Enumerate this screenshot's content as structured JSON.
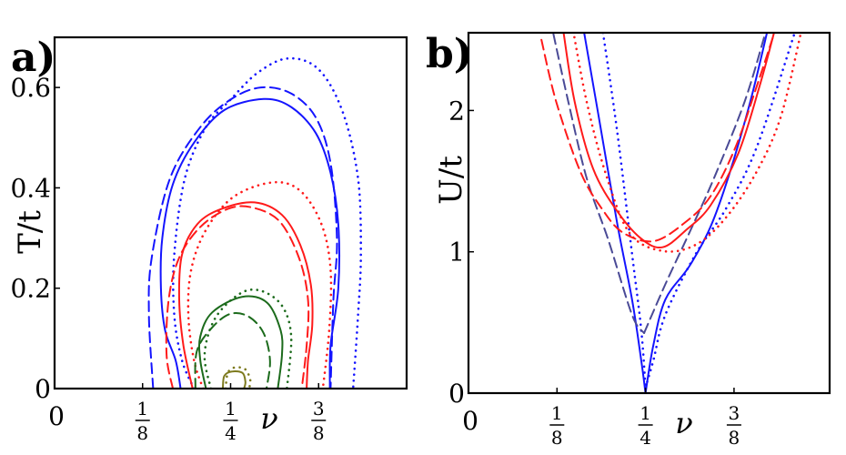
{
  "colors": {
    "blue": "#1414ff",
    "red": "#ff1a1a",
    "green": "#1c6b1c",
    "olive": "#7d7a1e",
    "slate": "#4a4a96"
  },
  "chart_data": [
    {
      "panel_label": "a)",
      "type": "line",
      "xlabel": "ν",
      "ylabel": "T/t",
      "xlim": [
        0,
        0.5
      ],
      "ylim": [
        0,
        0.7
      ],
      "xticks": [
        {
          "value": 0,
          "label": "0"
        },
        {
          "value": 0.125,
          "num": "1",
          "den": "8"
        },
        {
          "value": 0.25,
          "num": "1",
          "den": "4"
        },
        {
          "value": 0.375,
          "num": "3",
          "den": "8"
        }
      ],
      "yticks": [
        {
          "value": 0,
          "label": "0"
        },
        {
          "value": 0.2,
          "label": "0.2"
        },
        {
          "value": 0.4,
          "label": "0.4"
        },
        {
          "value": 0.6,
          "label": "0.6"
        }
      ],
      "grid": false,
      "series": [
        {
          "color": "blue",
          "style": "solid",
          "points": [
            [
              0.179,
              0
            ],
            [
              0.172,
              0.056
            ],
            [
              0.157,
              0.116
            ],
            [
              0.151,
              0.2
            ],
            [
              0.153,
              0.3
            ],
            [
              0.168,
              0.407
            ],
            [
              0.198,
              0.49
            ],
            [
              0.241,
              0.555
            ],
            [
              0.297,
              0.577
            ],
            [
              0.336,
              0.561
            ],
            [
              0.371,
              0.509
            ],
            [
              0.392,
              0.43
            ],
            [
              0.403,
              0.327
            ],
            [
              0.403,
              0.2
            ],
            [
              0.392,
              0.086
            ],
            [
              0.391,
              0
            ]
          ]
        },
        {
          "color": "blue",
          "style": "dashed",
          "points": [
            [
              0.14,
              0
            ],
            [
              0.134,
              0.146
            ],
            [
              0.138,
              0.261
            ],
            [
              0.164,
              0.419
            ],
            [
              0.207,
              0.521
            ],
            [
              0.25,
              0.576
            ],
            [
              0.293,
              0.6
            ],
            [
              0.336,
              0.588
            ],
            [
              0.371,
              0.54
            ],
            [
              0.392,
              0.449
            ],
            [
              0.401,
              0.298
            ],
            [
              0.396,
              0.177
            ],
            [
              0.392,
              0
            ]
          ]
        },
        {
          "color": "blue",
          "style": "dotted",
          "points": [
            [
              0.198,
              0
            ],
            [
              0.181,
              0.056
            ],
            [
              0.17,
              0.146
            ],
            [
              0.17,
              0.267
            ],
            [
              0.185,
              0.419
            ],
            [
              0.215,
              0.521
            ],
            [
              0.25,
              0.576
            ],
            [
              0.289,
              0.63
            ],
            [
              0.332,
              0.658
            ],
            [
              0.375,
              0.636
            ],
            [
              0.409,
              0.552
            ],
            [
              0.431,
              0.419
            ],
            [
              0.435,
              0.267
            ],
            [
              0.431,
              0.146
            ],
            [
              0.424,
              0
            ]
          ]
        },
        {
          "color": "red",
          "style": "solid",
          "points": [
            [
              0.196,
              0
            ],
            [
              0.183,
              0.086
            ],
            [
              0.177,
              0.177
            ],
            [
              0.181,
              0.267
            ],
            [
              0.203,
              0.328
            ],
            [
              0.237,
              0.358
            ],
            [
              0.284,
              0.371
            ],
            [
              0.323,
              0.346
            ],
            [
              0.349,
              0.286
            ],
            [
              0.364,
              0.207
            ],
            [
              0.366,
              0.128
            ],
            [
              0.36,
              0.056
            ],
            [
              0.358,
              0
            ]
          ]
        },
        {
          "color": "red",
          "style": "dashed",
          "points": [
            [
              0.168,
              0
            ],
            [
              0.159,
              0.068
            ],
            [
              0.162,
              0.177
            ],
            [
              0.177,
              0.261
            ],
            [
              0.207,
              0.322
            ],
            [
              0.246,
              0.358
            ],
            [
              0.28,
              0.361
            ],
            [
              0.319,
              0.334
            ],
            [
              0.347,
              0.261
            ],
            [
              0.36,
              0.177
            ],
            [
              0.358,
              0.086
            ],
            [
              0.351,
              0
            ]
          ]
        },
        {
          "color": "red",
          "style": "dotted",
          "points": [
            [
              0.211,
              0
            ],
            [
              0.198,
              0.056
            ],
            [
              0.19,
              0.146
            ],
            [
              0.194,
              0.237
            ],
            [
              0.215,
              0.316
            ],
            [
              0.254,
              0.382
            ],
            [
              0.31,
              0.411
            ],
            [
              0.349,
              0.394
            ],
            [
              0.379,
              0.328
            ],
            [
              0.392,
              0.237
            ],
            [
              0.39,
              0.116
            ],
            [
              0.381,
              0
            ]
          ]
        },
        {
          "color": "green",
          "style": "solid",
          "points": [
            [
              0.215,
              0
            ],
            [
              0.207,
              0.056
            ],
            [
              0.207,
              0.104
            ],
            [
              0.224,
              0.152
            ],
            [
              0.267,
              0.183
            ],
            [
              0.302,
              0.171
            ],
            [
              0.321,
              0.116
            ],
            [
              0.323,
              0.068
            ],
            [
              0.317,
              0
            ]
          ]
        },
        {
          "color": "green",
          "style": "dashed",
          "points": [
            [
              0.2,
              0
            ],
            [
              0.202,
              0.074
            ],
            [
              0.224,
              0.122
            ],
            [
              0.25,
              0.149
            ],
            [
              0.276,
              0.143
            ],
            [
              0.297,
              0.11
            ],
            [
              0.306,
              0.056
            ],
            [
              0.301,
              0
            ]
          ]
        },
        {
          "color": "green",
          "style": "dotted",
          "points": [
            [
              0.222,
              0
            ],
            [
              0.213,
              0.068
            ],
            [
              0.228,
              0.14
            ],
            [
              0.263,
              0.189
            ],
            [
              0.293,
              0.195
            ],
            [
              0.323,
              0.165
            ],
            [
              0.336,
              0.104
            ],
            [
              0.33,
              0
            ]
          ]
        },
        {
          "color": "olive",
          "style": "solid",
          "points": [
            [
              0.239,
              0
            ],
            [
              0.241,
              0.025
            ],
            [
              0.252,
              0.034
            ],
            [
              0.267,
              0.031
            ],
            [
              0.271,
              0.013
            ],
            [
              0.269,
              0
            ]
          ]
        },
        {
          "color": "olive",
          "style": "dotted",
          "points": [
            [
              0.243,
              0
            ],
            [
              0.246,
              0.031
            ],
            [
              0.256,
              0.042
            ],
            [
              0.271,
              0.038
            ],
            [
              0.278,
              0.016
            ],
            [
              0.276,
              0
            ]
          ]
        }
      ]
    },
    {
      "panel_label": "b)",
      "type": "line",
      "xlabel": "ν",
      "ylabel": "U/t",
      "xlim": [
        0,
        0.51
      ],
      "ylim": [
        0,
        2.55
      ],
      "xticks": [
        {
          "value": 0,
          "label": "0"
        },
        {
          "value": 0.125,
          "num": "1",
          "den": "8"
        },
        {
          "value": 0.25,
          "num": "1",
          "den": "4"
        },
        {
          "value": 0.375,
          "num": "3",
          "den": "8"
        }
      ],
      "yticks": [
        {
          "value": 0,
          "label": "0"
        },
        {
          "value": 1,
          "label": "1"
        },
        {
          "value": 2,
          "label": "2"
        }
      ],
      "grid": false,
      "series": [
        {
          "color": "blue",
          "style": "solid",
          "points": [
            [
              0.163,
              2.56
            ],
            [
              0.184,
              1.955
            ],
            [
              0.21,
              1.2
            ],
            [
              0.231,
              0.662
            ],
            [
              0.244,
              0.231
            ],
            [
              0.25,
              0
            ]
          ]
        },
        {
          "color": "blue",
          "style": "solid",
          "points": [
            [
              0.25,
              0
            ],
            [
              0.261,
              0.338
            ],
            [
              0.278,
              0.662
            ],
            [
              0.312,
              0.899
            ],
            [
              0.342,
              1.179
            ],
            [
              0.368,
              1.545
            ],
            [
              0.398,
              2.063
            ],
            [
              0.422,
              2.56
            ]
          ]
        },
        {
          "color": "blue",
          "style": "dotted",
          "points": [
            [
              0.19,
              2.55
            ],
            [
              0.21,
              1.85
            ],
            [
              0.231,
              0.985
            ],
            [
              0.244,
              0.446
            ],
            [
              0.25,
              0.04
            ]
          ]
        },
        {
          "color": "blue",
          "style": "dotted",
          "points": [
            [
              0.25,
              0.04
            ],
            [
              0.261,
              0.23
            ],
            [
              0.278,
              0.554
            ],
            [
              0.321,
              0.985
            ],
            [
              0.364,
              1.308
            ],
            [
              0.407,
              1.739
            ],
            [
              0.46,
              2.54
            ]
          ]
        },
        {
          "color": "slate",
          "style": "dashed",
          "points": [
            [
              0.12,
              2.54
            ],
            [
              0.141,
              2.06
            ],
            [
              0.167,
              1.52
            ],
            [
              0.197,
              1.09
            ],
            [
              0.231,
              0.554
            ],
            [
              0.248,
              0.425
            ]
          ]
        },
        {
          "color": "slate",
          "style": "dashed",
          "points": [
            [
              0.248,
              0.425
            ],
            [
              0.278,
              0.77
            ],
            [
              0.312,
              1.136
            ],
            [
              0.347,
              1.524
            ],
            [
              0.39,
              2.063
            ],
            [
              0.42,
              2.56
            ]
          ]
        },
        {
          "color": "red",
          "style": "solid",
          "points": [
            [
              0.134,
              2.56
            ],
            [
              0.15,
              2.06
            ],
            [
              0.176,
              1.588
            ],
            [
              0.21,
              1.287
            ],
            [
              0.244,
              1.093
            ],
            [
              0.274,
              1.032
            ],
            [
              0.308,
              1.157
            ],
            [
              0.342,
              1.33
            ],
            [
              0.381,
              1.696
            ],
            [
              0.411,
              2.17
            ],
            [
              0.432,
              2.56
            ]
          ]
        },
        {
          "color": "red",
          "style": "dashed",
          "points": [
            [
              0.103,
              2.5
            ],
            [
              0.124,
              2.06
            ],
            [
              0.158,
              1.567
            ],
            [
              0.188,
              1.308
            ],
            [
              0.218,
              1.136
            ],
            [
              0.261,
              1.075
            ],
            [
              0.304,
              1.2
            ],
            [
              0.342,
              1.394
            ],
            [
              0.377,
              1.739
            ],
            [
              0.407,
              2.17
            ],
            [
              0.432,
              2.55
            ]
          ]
        },
        {
          "color": "red",
          "style": "dotted",
          "points": [
            [
              0.148,
              2.56
            ],
            [
              0.167,
              2.06
            ],
            [
              0.193,
              1.567
            ],
            [
              0.227,
              1.136
            ],
            [
              0.274,
              1.006
            ],
            [
              0.321,
              1.05
            ],
            [
              0.364,
              1.244
            ],
            [
              0.407,
              1.567
            ],
            [
              0.441,
              1.955
            ],
            [
              0.469,
              2.54
            ]
          ]
        }
      ]
    }
  ]
}
